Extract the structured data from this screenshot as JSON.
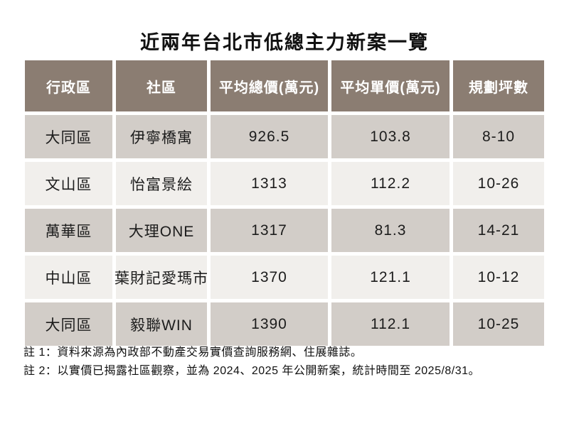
{
  "title": "近兩年台北市低總主力新案一覽",
  "colors": {
    "header_bg": "#8b7d72",
    "row_odd_bg": "#d2cdc8",
    "row_even_bg": "#f1efec",
    "header_text": "#ffffff",
    "body_text": "#1c1c1c",
    "page_bg": "#ffffff"
  },
  "chart_data": {
    "type": "table",
    "title": "近兩年台北市低總主力新案一覽",
    "columns": [
      "行政區",
      "社區",
      "平均總價(萬元)",
      "平均單價(萬元)",
      "規劃坪數"
    ],
    "rows": [
      [
        "大同區",
        "伊寧橋寓",
        "926.5",
        "103.8",
        "8-10"
      ],
      [
        "文山區",
        "怡富景絵",
        "1313",
        "112.2",
        "10-26"
      ],
      [
        "萬華區",
        "大理ONE",
        "1317",
        "81.3",
        "14-21"
      ],
      [
        "中山區",
        "葉財記愛瑪市",
        "1370",
        "121.1",
        "10-12"
      ],
      [
        "大同區",
        "毅聯WIN",
        "1390",
        "112.1",
        "10-25"
      ]
    ],
    "notes": [
      "註 1：資料來源為內政部不動產交易實價查詢服務網、住展雜誌。",
      "註 2：以實價已揭露社區觀察，並為 2024、2025 年公開新案，統計時間至 2025/8/31。"
    ]
  }
}
